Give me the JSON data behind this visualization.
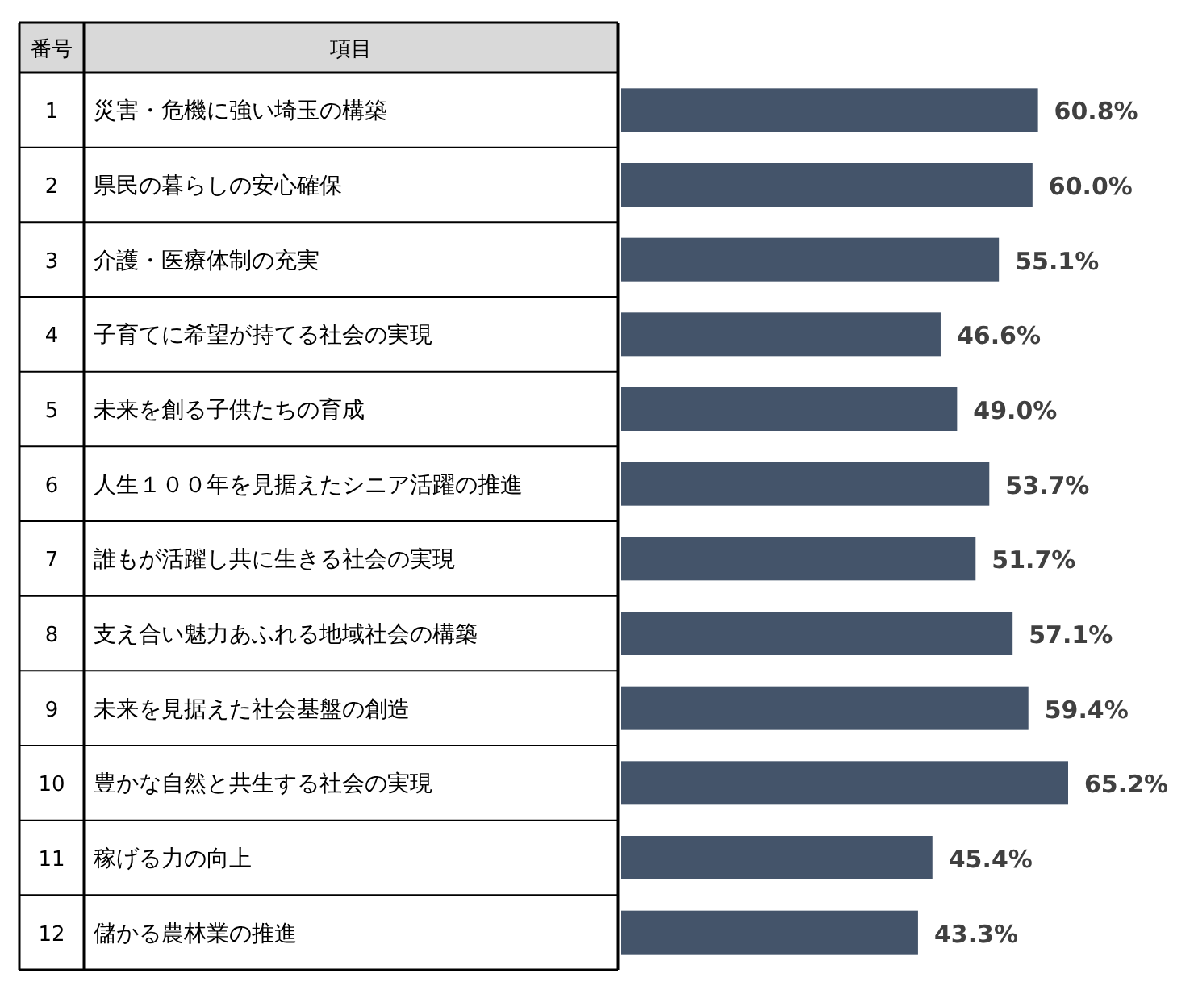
{
  "chart_data": {
    "type": "bar",
    "orientation": "horizontal",
    "categories": [
      "災害・危機に強い埼玉の構築",
      "県民の暮らしの安心確保",
      "介護・医療体制の充実",
      "子育てに希望が持てる社会の実現",
      "未来を創る子供たちの育成",
      "人生１００年を見据えたシニア活躍の推進",
      "誰もが活躍し共に生きる社会の実現",
      "支え合い魅力あふれる地域社会の構築",
      "未来を見据えた社会基盤の創造",
      "豊かな自然と共生する社会の実現",
      "稼げる力の向上",
      "儲かる農林業の推進"
    ],
    "values": [
      60.8,
      60.0,
      55.1,
      46.6,
      49.0,
      53.7,
      51.7,
      57.1,
      59.4,
      65.2,
      45.4,
      43.3
    ],
    "value_labels": [
      "60.8%",
      "60.0%",
      "55.1%",
      "46.6%",
      "49.0%",
      "53.7%",
      "51.7%",
      "57.1%",
      "59.4%",
      "65.2%",
      "45.4%",
      "43.3%"
    ],
    "color": "#44546a",
    "annotations": [
      "番号",
      "項目",
      "1",
      "2",
      "3",
      "4",
      "5",
      "6",
      "7",
      "8",
      "9",
      "10",
      "11",
      "12"
    ]
  }
}
